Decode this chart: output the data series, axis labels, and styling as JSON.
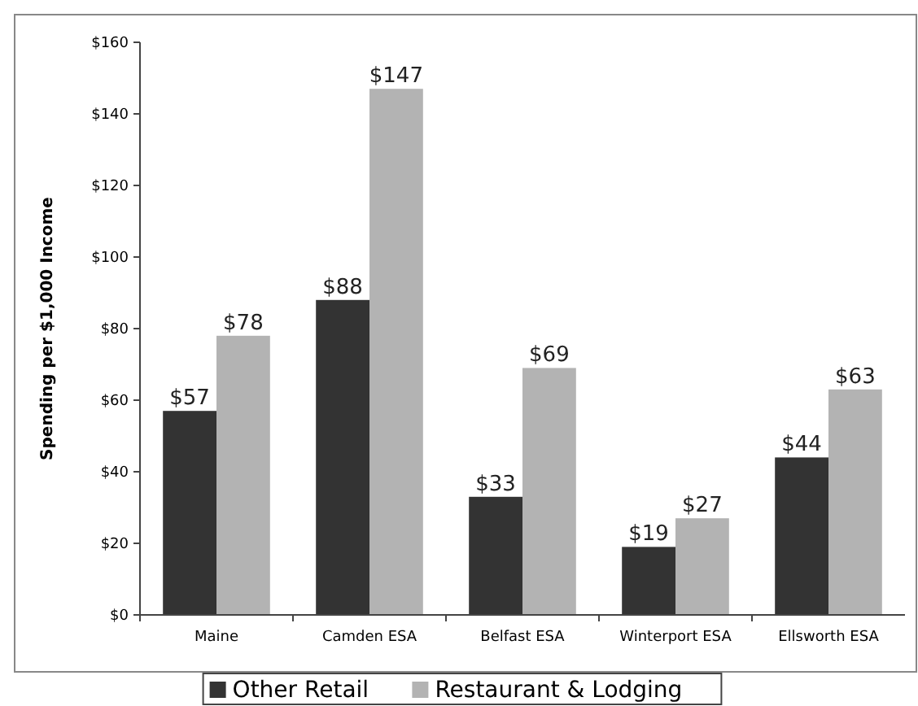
{
  "chart_data": {
    "type": "bar",
    "ylabel": "Spending per $1,000 Income",
    "categories": [
      "Maine",
      "Camden ESA",
      "Belfast ESA",
      "Winterport ESA",
      "Ellsworth ESA"
    ],
    "series": [
      {
        "name": "Other Retail",
        "color": "#333333",
        "values": [
          57,
          88,
          33,
          19,
          44
        ],
        "value_labels": [
          "$57",
          "$88",
          "$33",
          "$19",
          "$44"
        ]
      },
      {
        "name": "Restaurant & Lodging",
        "color": "#b3b3b3",
        "values": [
          78,
          147,
          69,
          27,
          63
        ],
        "value_labels": [
          "$78",
          "$147",
          "$69",
          "$27",
          "$63"
        ]
      }
    ],
    "ylim": [
      0,
      160
    ],
    "yticks": [
      {
        "value": 0,
        "label": "$0"
      },
      {
        "value": 20,
        "label": "$20"
      },
      {
        "value": 40,
        "label": "$40"
      },
      {
        "value": 60,
        "label": "$60"
      },
      {
        "value": 80,
        "label": "$80"
      },
      {
        "value": 100,
        "label": "$100"
      },
      {
        "value": 120,
        "label": "$120"
      },
      {
        "value": 140,
        "label": "$140"
      },
      {
        "value": 160,
        "label": "$160"
      }
    ],
    "grid": false,
    "legend": "bottom"
  }
}
